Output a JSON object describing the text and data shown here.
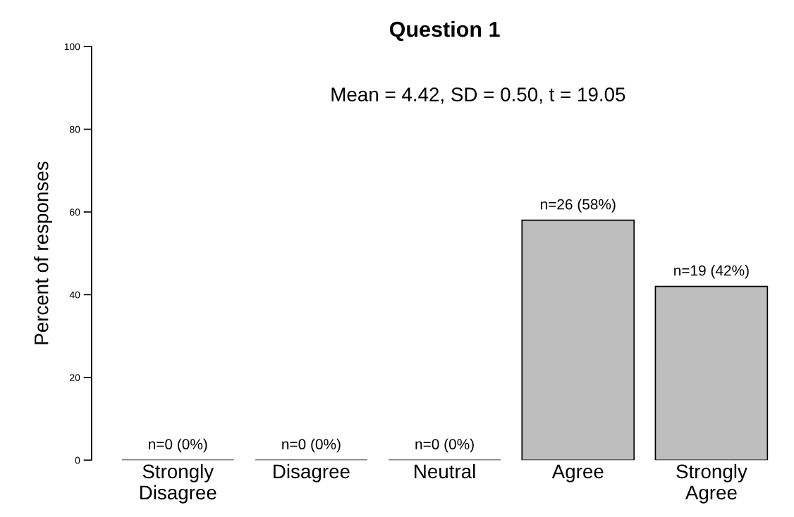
{
  "chart_data": {
    "type": "bar",
    "title": "Question 1",
    "ylabel": "Percent of responses",
    "categories": [
      "Strongly\nDisagree",
      "Disagree",
      "Neutral",
      "Agree",
      "Strongly\nAgree"
    ],
    "values": [
      0,
      0,
      0,
      58,
      42
    ],
    "value_labels": [
      "n=0 (0%)",
      "n=0 (0%)",
      "n=0 (0%)",
      "n=26 (58%)",
      "n=19 (42%)"
    ],
    "color": "#bebebe",
    "ylim": [
      0,
      100
    ],
    "yticks": [
      0,
      20,
      40,
      60,
      80,
      100
    ],
    "grid": false,
    "legend": false,
    "annotations": [
      "Mean = 4.42, SD = 0.50, t = 19.05"
    ]
  }
}
